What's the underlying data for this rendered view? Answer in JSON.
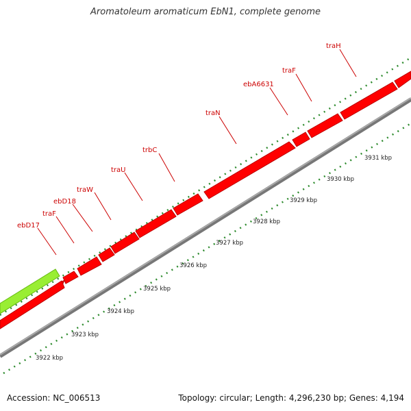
{
  "title": "Aromatoleum aromaticum EbN1, complete genome",
  "accession": "Accession: NC_006513",
  "stats": "Topology: circular; Length: 4,296,230 bp; Genes: 4,194",
  "colors": {
    "gene": "#ff0000",
    "gene_edge": "#c00000",
    "prior_gene": "#99ee33",
    "ticks": "#2e8b2e",
    "label": "#cc0000",
    "backbone": "#888888"
  },
  "scale_labels": [
    "3922 kbp",
    "3923 kbp",
    "3924 kbp",
    "3925 kbp",
    "3926 kbp",
    "3927 kbp",
    "3928 kbp",
    "3929 kbp",
    "3930 kbp",
    "3931 kbp"
  ],
  "genes": [
    {
      "label": "ebD17"
    },
    {
      "label": "traF"
    },
    {
      "label": "ebD18"
    },
    {
      "label": "traW"
    },
    {
      "label": "traU"
    },
    {
      "label": "trbC"
    },
    {
      "label": "traN"
    },
    {
      "label": "ebA6631"
    },
    {
      "label": "traF"
    },
    {
      "label": "traH"
    }
  ]
}
